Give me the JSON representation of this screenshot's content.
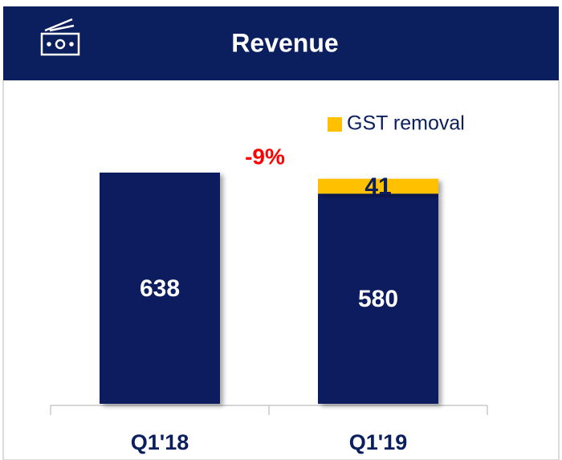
{
  "chart_data": {
    "type": "stacked_bar",
    "title": "Revenue",
    "categories": [
      "Q1'18",
      "Q1'19"
    ],
    "series": [
      {
        "color": "#0b1f5e",
        "values": [
          638,
          580
        ]
      },
      {
        "name": "GST removal",
        "color": "#ffc000",
        "values": [
          null,
          41
        ]
      }
    ],
    "annotations": [
      "-9%"
    ]
  }
}
